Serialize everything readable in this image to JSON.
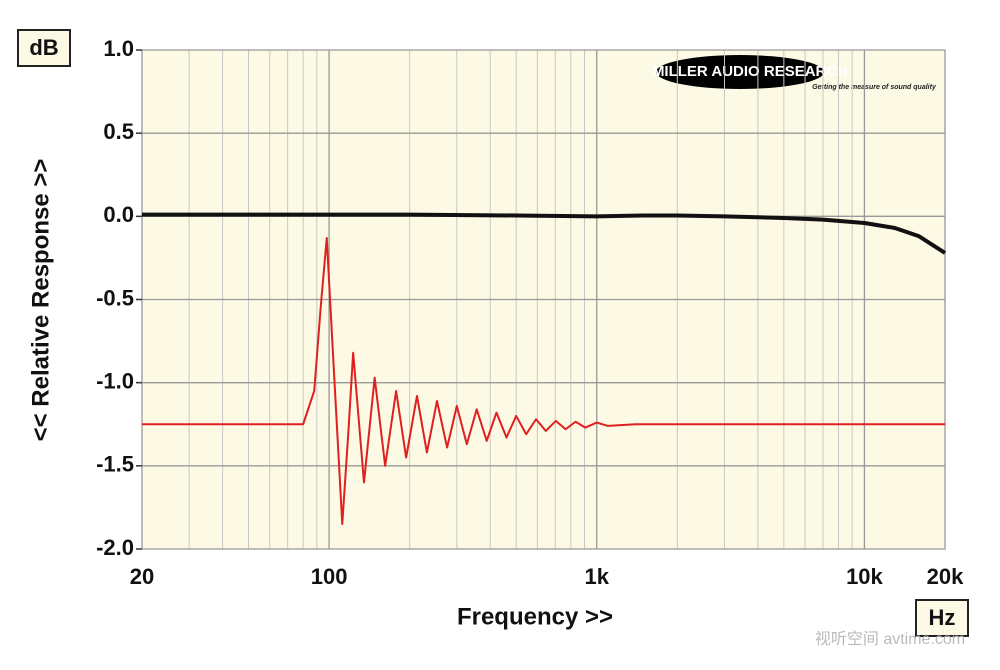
{
  "chart_data": {
    "type": "line",
    "y_label": "<< Relative Response >>",
    "x_label": "Frequency >>",
    "y_unit": "dB",
    "x_unit": "Hz",
    "logo": "MILLER AUDIO RESEARCH",
    "logo_tagline": "Getting the measure of sound quality",
    "watermark": "视听空间 avtime.com",
    "xscale": "log",
    "grid": true,
    "xlim": [
      20,
      20000
    ],
    "ylim": [
      -2.0,
      1.0
    ],
    "xticks": [
      {
        "value": 20,
        "label": "20"
      },
      {
        "value": 100,
        "label": "100"
      },
      {
        "value": 1000,
        "label": "1k"
      },
      {
        "value": 10000,
        "label": "10k"
      },
      {
        "value": 20000,
        "label": "20k"
      }
    ],
    "xminorticks": [
      30,
      40,
      50,
      60,
      70,
      80,
      90,
      200,
      300,
      400,
      500,
      600,
      700,
      800,
      900,
      2000,
      3000,
      4000,
      5000,
      6000,
      7000,
      8000,
      9000
    ],
    "yticks": [
      {
        "value": 1.0,
        "label": "1.0"
      },
      {
        "value": 0.5,
        "label": "0.5"
      },
      {
        "value": 0.0,
        "label": "0.0"
      },
      {
        "value": -0.5,
        "label": "-0.5"
      },
      {
        "value": -1.0,
        "label": "-1.0"
      },
      {
        "value": -1.5,
        "label": "-1.5"
      },
      {
        "value": -2.0,
        "label": "-2.0"
      }
    ],
    "series": [
      {
        "color": "#111111",
        "width": 4,
        "x": [
          20,
          50,
          100,
          200,
          500,
          1000,
          1500,
          2000,
          3000,
          5000,
          7000,
          10000,
          13000,
          16000,
          20000
        ],
        "values": [
          0.01,
          0.01,
          0.01,
          0.01,
          0.005,
          0,
          0.005,
          0.005,
          0,
          -0.01,
          -0.02,
          -0.04,
          -0.07,
          -0.12,
          -0.22
        ]
      },
      {
        "color": "#e02020",
        "width": 2,
        "x": [
          20,
          80,
          88,
          93,
          98,
          104,
          112,
          118,
          123,
          135,
          148,
          162,
          178,
          194,
          213,
          232,
          253,
          276,
          300,
          327,
          356,
          388,
          422,
          460,
          500,
          545,
          593,
          645,
          703,
          765,
          833,
          907,
          1000,
          1100,
          1400,
          20000
        ],
        "values": [
          -1.25,
          -1.25,
          -1.05,
          -0.55,
          -0.13,
          -0.9,
          -1.85,
          -1.3,
          -0.82,
          -1.6,
          -0.97,
          -1.5,
          -1.05,
          -1.45,
          -1.08,
          -1.42,
          -1.11,
          -1.39,
          -1.14,
          -1.37,
          -1.16,
          -1.35,
          -1.18,
          -1.33,
          -1.2,
          -1.31,
          -1.22,
          -1.29,
          -1.23,
          -1.28,
          -1.235,
          -1.27,
          -1.24,
          -1.26,
          -1.25,
          -1.25
        ]
      }
    ]
  }
}
